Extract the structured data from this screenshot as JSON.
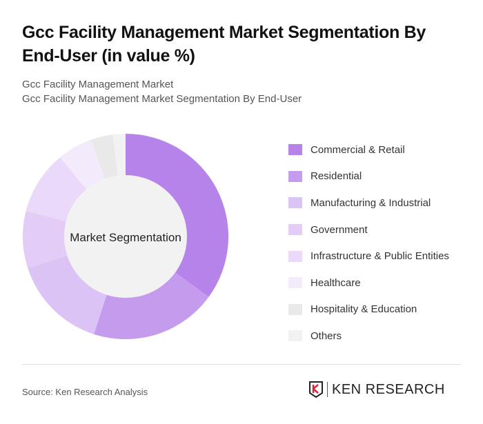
{
  "title": "Gcc Facility Management Market Segmentation By End-User (in value %)",
  "subtitle1": "Gcc Facility Management Market",
  "subtitle2": "Gcc Facility Management Market Segmentation By End-User",
  "source": "Source: Ken Research Analysis",
  "logo_text": "KEN RESEARCH",
  "chart_data": {
    "type": "pie",
    "donut": true,
    "center_label": "Market Segmentation",
    "legend_position": "right",
    "categories": [
      "Commercial & Retail",
      "Residential",
      "Manufacturing & Industrial",
      "Government",
      "Infrastructure & Public Entities",
      "Healthcare",
      "Hospitality & Education",
      "Others"
    ],
    "values": [
      35,
      20,
      15,
      9,
      10,
      5.5,
      3.5,
      2
    ],
    "colors": [
      "#b583ea",
      "#c59ced",
      "#dcc3f5",
      "#e3cdf6",
      "#ead9f9",
      "#f3ebfc",
      "#e9e9e9",
      "#f2f2f2"
    ]
  }
}
